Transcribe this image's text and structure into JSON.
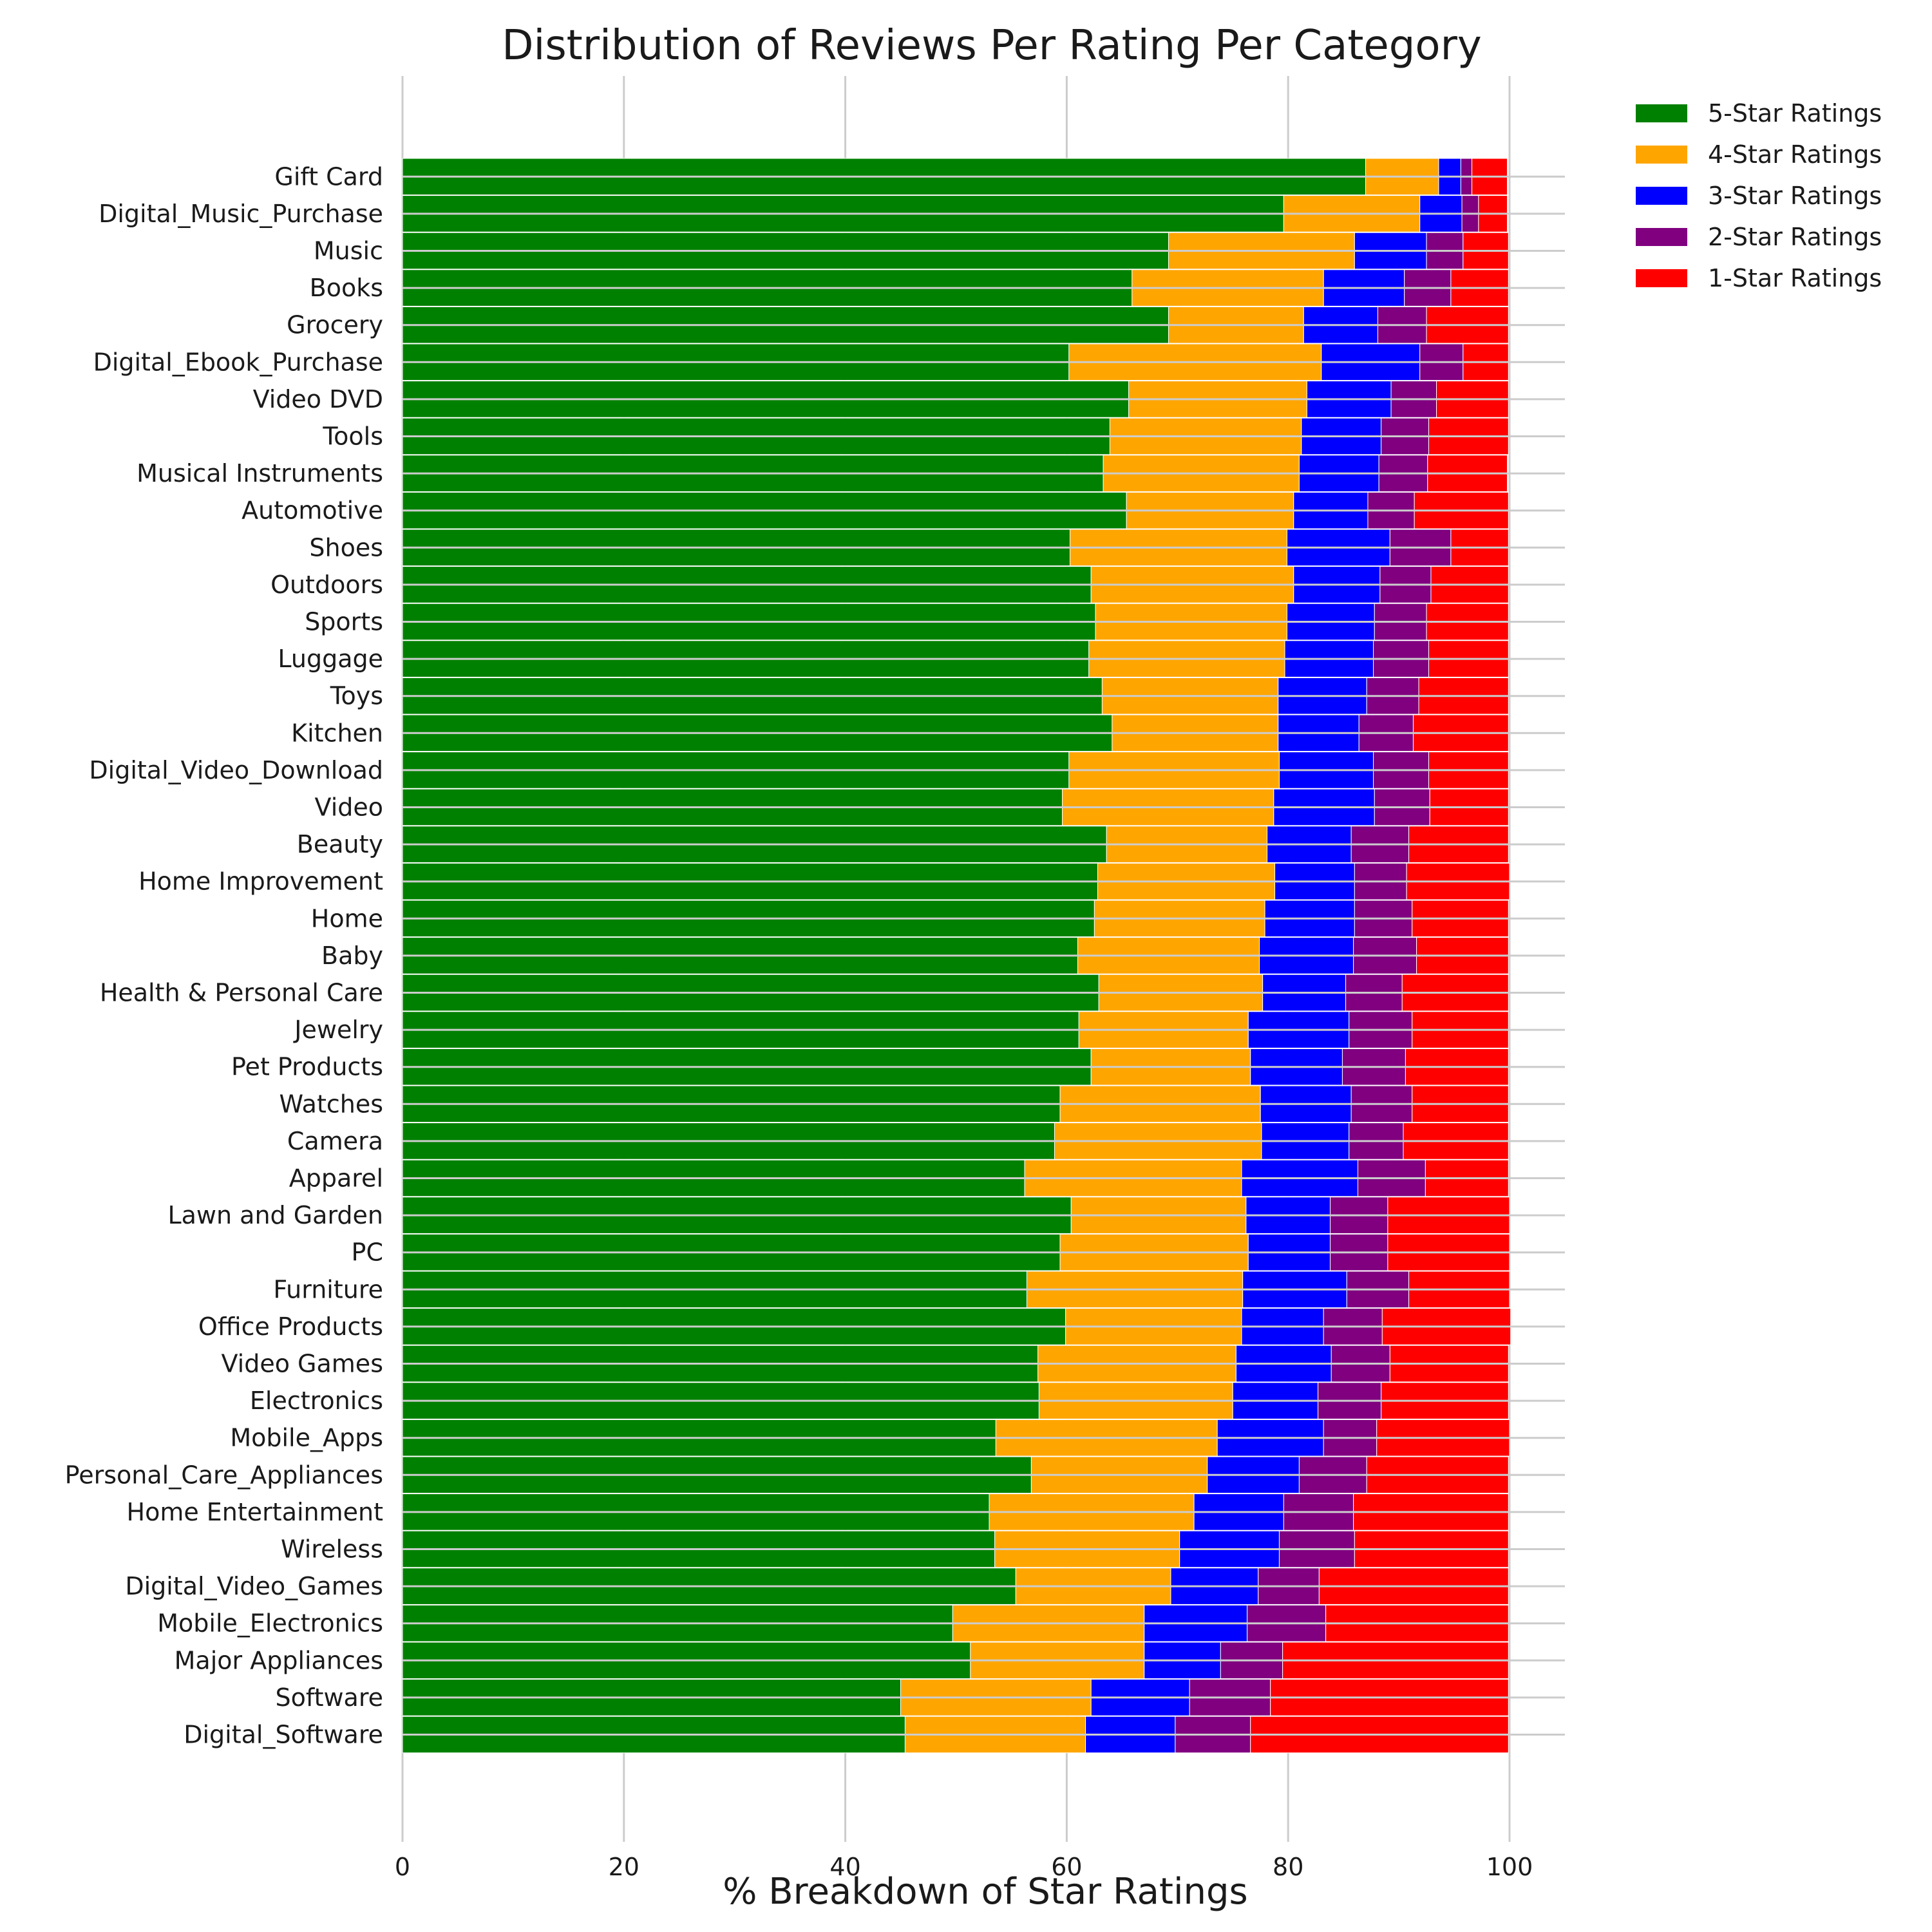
{
  "chart_data": {
    "type": "bar",
    "orientation": "horizontal",
    "stacked": true,
    "title": "Distribution of Reviews Per Rating Per Category",
    "xlabel": "% Breakdown of Star Ratings",
    "ylabel": "",
    "xlim": [
      0,
      105
    ],
    "xticks": [
      0,
      20,
      40,
      60,
      80,
      100
    ],
    "grid": "vertical",
    "legend_position": "top-right-outside",
    "categories": [
      "Gift Card",
      "Digital_Music_Purchase",
      "Music",
      "Books",
      "Grocery",
      "Digital_Ebook_Purchase",
      "Video DVD",
      "Tools",
      "Musical Instruments",
      "Automotive",
      "Shoes",
      "Outdoors",
      "Sports",
      "Luggage",
      "Toys",
      "Kitchen",
      "Digital_Video_Download",
      "Video",
      "Beauty",
      "Home Improvement",
      "Home",
      "Baby",
      "Health & Personal Care",
      "Jewelry",
      "Pet Products",
      "Watches",
      "Camera",
      "Apparel",
      "Lawn and Garden",
      "PC",
      "Furniture",
      "Office Products",
      "Video Games",
      "Electronics",
      "Mobile_Apps",
      "Personal_Care_Appliances",
      "Home Entertainment",
      "Wireless",
      "Digital_Video_Games",
      "Mobile_Electronics",
      "Major Appliances",
      "Software",
      "Digital_Software"
    ],
    "series": [
      {
        "name": "5-Star Ratings",
        "color": "#008000",
        "values": [
          87.0,
          79.6,
          69.2,
          65.9,
          69.2,
          60.2,
          65.6,
          63.9,
          63.3,
          65.4,
          60.3,
          62.2,
          62.6,
          62.0,
          63.2,
          64.1,
          60.2,
          59.6,
          63.6,
          62.8,
          62.5,
          61.0,
          62.9,
          61.1,
          62.2,
          59.4,
          58.9,
          56.2,
          60.4,
          59.4,
          56.4,
          59.9,
          57.4,
          57.5,
          53.6,
          56.8,
          53.0,
          53.5,
          55.4,
          49.7,
          51.3,
          45.0,
          45.4
        ]
      },
      {
        "name": "4-Star Ratings",
        "color": "#FFA500",
        "values": [
          6.6,
          12.3,
          16.8,
          17.3,
          12.2,
          22.8,
          16.1,
          17.3,
          17.7,
          15.1,
          19.6,
          18.3,
          17.3,
          17.7,
          15.9,
          15.0,
          19.0,
          19.1,
          14.5,
          16.0,
          15.4,
          16.4,
          14.8,
          15.3,
          14.4,
          18.1,
          18.7,
          19.6,
          15.8,
          17.0,
          19.5,
          15.9,
          17.9,
          17.5,
          20.0,
          15.9,
          18.5,
          16.7,
          14.0,
          17.3,
          15.7,
          17.2,
          16.3
        ]
      },
      {
        "name": "3-Star Ratings",
        "color": "#0000FF",
        "values": [
          2.0,
          3.8,
          6.5,
          7.3,
          6.7,
          8.9,
          7.6,
          7.2,
          7.2,
          6.7,
          9.3,
          7.8,
          7.9,
          8.0,
          8.0,
          7.3,
          8.5,
          9.1,
          7.6,
          7.2,
          8.1,
          8.5,
          7.5,
          9.1,
          8.3,
          8.2,
          7.9,
          10.5,
          7.6,
          7.4,
          9.4,
          7.4,
          8.6,
          7.7,
          9.6,
          8.3,
          8.1,
          9.0,
          7.9,
          9.3,
          6.9,
          8.9,
          8.1
        ]
      },
      {
        "name": "2-Star Ratings",
        "color": "#800080",
        "values": [
          1.0,
          1.5,
          3.3,
          4.2,
          4.4,
          3.9,
          4.1,
          4.3,
          4.4,
          4.2,
          5.5,
          4.6,
          4.7,
          5.0,
          4.7,
          4.9,
          5.0,
          5.0,
          5.2,
          4.7,
          5.2,
          5.7,
          5.1,
          5.7,
          5.7,
          5.5,
          4.9,
          6.1,
          5.2,
          5.2,
          5.6,
          5.3,
          5.3,
          5.7,
          4.8,
          6.1,
          6.3,
          6.8,
          5.5,
          7.1,
          5.6,
          7.3,
          6.8
        ]
      },
      {
        "name": "1-Star Ratings",
        "color": "#FF0000",
        "values": [
          3.2,
          2.6,
          4.1,
          5.2,
          7.4,
          4.1,
          6.5,
          7.2,
          7.2,
          8.5,
          5.2,
          7.0,
          7.4,
          7.2,
          8.1,
          8.6,
          7.2,
          7.1,
          9.0,
          9.3,
          8.7,
          8.3,
          9.6,
          8.7,
          9.3,
          8.7,
          9.5,
          7.5,
          11.0,
          11.0,
          9.1,
          11.6,
          10.7,
          11.5,
          12.0,
          12.8,
          14.0,
          13.9,
          17.1,
          16.5,
          20.4,
          21.5,
          23.3
        ]
      }
    ]
  }
}
